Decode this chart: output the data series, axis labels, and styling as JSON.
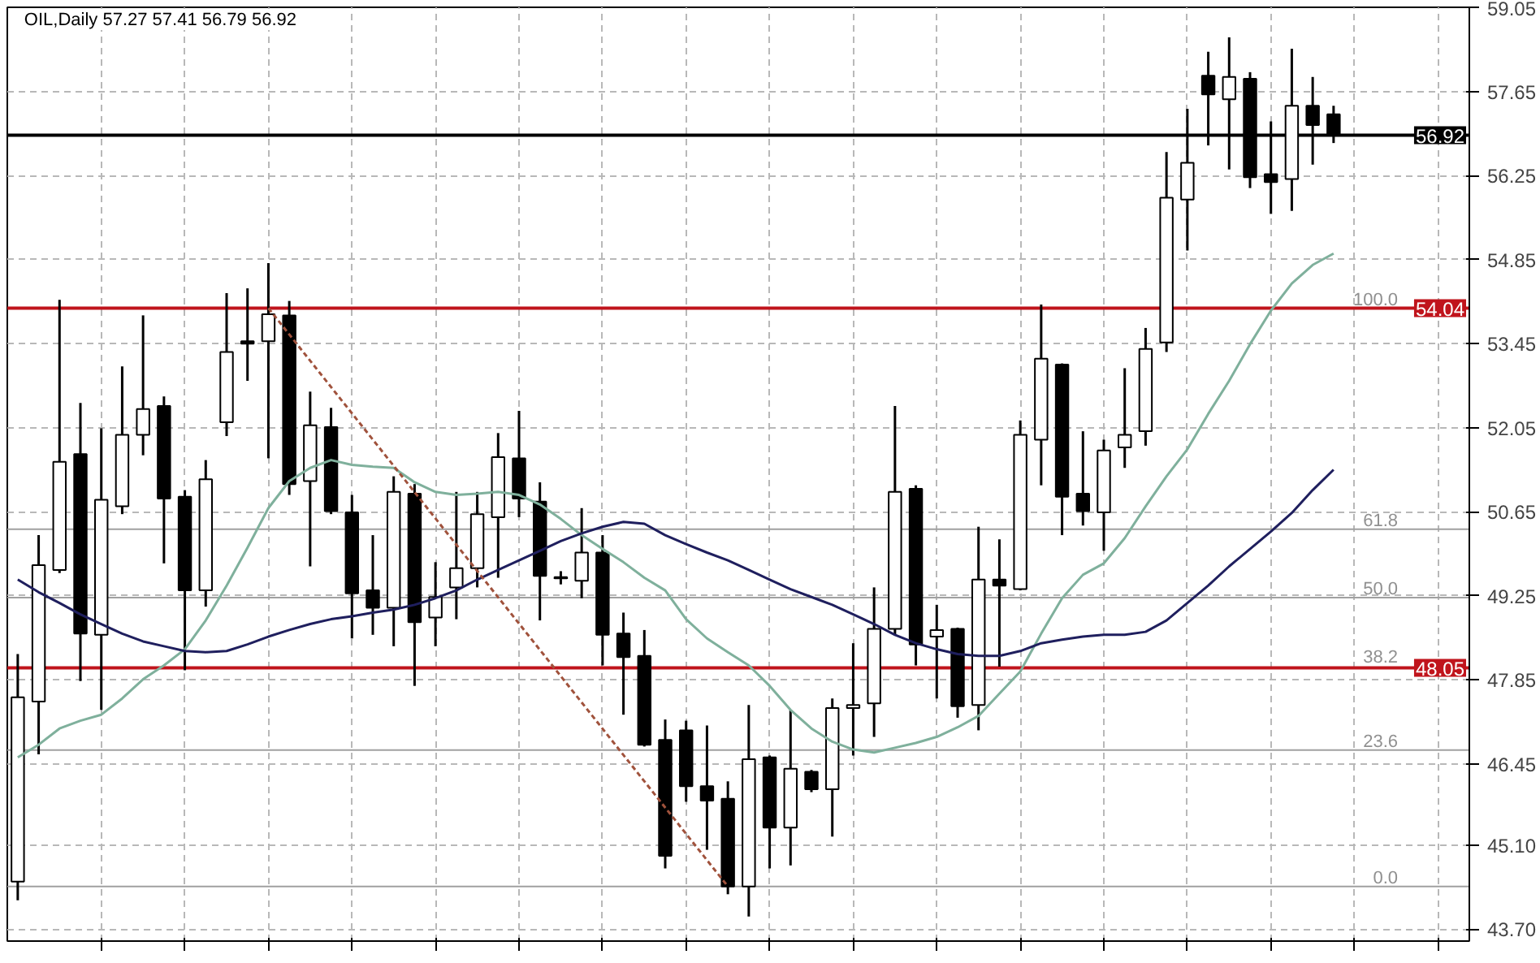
{
  "chart_data": {
    "type": "candlestick",
    "title": "OIL,Daily  57.27 57.41 56.79 56.92",
    "categories": [
      null,
      null,
      null,
      null,
      null,
      null,
      null,
      null,
      null,
      null,
      null,
      null,
      null,
      null,
      null,
      null,
      null,
      null,
      null,
      null,
      null,
      null,
      null,
      null,
      null,
      null,
      null,
      null,
      null,
      null,
      null,
      null,
      null,
      null,
      null,
      null,
      null,
      null,
      null,
      null,
      null,
      null,
      null,
      null,
      null,
      null,
      null,
      null,
      null,
      null,
      null,
      null,
      null,
      null,
      null,
      null,
      null,
      null,
      null,
      null,
      null,
      null,
      null,
      null
    ],
    "ohlc": [
      [
        44.49,
        48.28,
        44.18,
        47.56
      ],
      [
        47.49,
        50.26,
        46.61,
        49.76
      ],
      [
        49.68,
        54.18,
        49.63,
        51.48
      ],
      [
        51.61,
        52.46,
        47.83,
        48.62
      ],
      [
        48.6,
        52.04,
        47.35,
        50.85
      ],
      [
        50.74,
        53.07,
        50.61,
        51.93
      ],
      [
        51.93,
        53.92,
        51.59,
        52.36
      ],
      [
        52.41,
        52.57,
        49.79,
        50.87
      ],
      [
        50.9,
        51.01,
        48.01,
        49.34
      ],
      [
        49.34,
        51.51,
        49.07,
        51.19
      ],
      [
        52.14,
        54.29,
        51.91,
        53.31
      ],
      [
        53.49,
        54.37,
        52.83,
        53.45
      ],
      [
        53.49,
        54.79,
        51.54,
        53.94
      ],
      [
        53.92,
        54.16,
        50.93,
        51.11
      ],
      [
        51.16,
        52.65,
        49.74,
        52.09
      ],
      [
        52.06,
        52.38,
        50.61,
        50.66
      ],
      [
        50.64,
        50.93,
        48.54,
        49.29
      ],
      [
        49.34,
        50.26,
        48.6,
        49.05
      ],
      [
        49.05,
        51.24,
        48.41,
        50.98
      ],
      [
        50.95,
        51.11,
        47.75,
        48.81
      ],
      [
        48.89,
        49.81,
        48.41,
        49.23
      ],
      [
        49.39,
        50.98,
        48.86,
        49.71
      ],
      [
        49.71,
        50.98,
        49.39,
        50.61
      ],
      [
        50.56,
        51.96,
        49.55,
        51.56
      ],
      [
        51.54,
        52.33,
        50.56,
        50.87
      ],
      [
        50.82,
        51.14,
        48.84,
        49.58
      ],
      [
        49.56,
        49.66,
        49.44,
        49.54
      ],
      [
        49.5,
        50.71,
        49.21,
        49.97
      ],
      [
        49.97,
        50.26,
        48.09,
        48.6
      ],
      [
        48.62,
        48.97,
        47.27,
        48.23
      ],
      [
        48.25,
        48.68,
        46.74,
        46.77
      ],
      [
        46.85,
        47.19,
        44.71,
        44.92
      ],
      [
        47.01,
        47.17,
        45.82,
        46.08
      ],
      [
        46.08,
        47.09,
        45.02,
        45.84
      ],
      [
        45.87,
        46.16,
        44.28,
        44.41
      ],
      [
        44.41,
        47.43,
        43.91,
        46.53
      ],
      [
        46.56,
        46.59,
        44.71,
        45.39
      ],
      [
        45.39,
        47.35,
        44.76,
        46.37
      ],
      [
        46.32,
        46.35,
        45.98,
        46.03
      ],
      [
        46.03,
        47.54,
        45.24,
        47.38
      ],
      [
        47.38,
        48.46,
        46.59,
        47.43
      ],
      [
        47.46,
        49.39,
        46.9,
        48.7
      ],
      [
        48.7,
        52.41,
        48.6,
        50.98
      ],
      [
        51.03,
        51.09,
        48.09,
        48.44
      ],
      [
        48.57,
        49.1,
        47.54,
        48.68
      ],
      [
        48.7,
        48.72,
        47.22,
        47.41
      ],
      [
        47.43,
        50.4,
        47.01,
        49.52
      ],
      [
        49.52,
        50.19,
        48.07,
        49.42
      ],
      [
        49.36,
        52.17,
        49.34,
        51.93
      ],
      [
        51.85,
        54.1,
        51.09,
        53.2
      ],
      [
        53.1,
        53.12,
        50.26,
        50.9
      ],
      [
        50.95,
        51.99,
        50.42,
        50.66
      ],
      [
        50.64,
        51.85,
        50.0,
        51.67
      ],
      [
        51.72,
        53.04,
        51.38,
        51.93
      ],
      [
        51.99,
        53.71,
        51.75,
        53.36
      ],
      [
        53.47,
        56.64,
        53.31,
        55.88
      ],
      [
        55.85,
        57.36,
        55.0,
        56.46
      ],
      [
        57.91,
        58.31,
        56.75,
        57.6
      ],
      [
        57.52,
        58.55,
        56.35,
        57.89
      ],
      [
        57.86,
        57.97,
        56.04,
        56.22
      ],
      [
        56.27,
        57.15,
        55.61,
        56.14
      ],
      [
        56.19,
        58.36,
        55.66,
        57.41
      ],
      [
        57.41,
        57.89,
        56.43,
        57.09
      ],
      [
        57.27,
        57.41,
        56.79,
        56.92
      ]
    ],
    "series": [
      {
        "type": "line",
        "color": "#7fb09c",
        "values": [
          46.56,
          46.77,
          47.04,
          47.17,
          47.27,
          47.54,
          47.86,
          48.09,
          48.36,
          48.84,
          49.42,
          50.05,
          50.71,
          51.16,
          51.38,
          51.51,
          51.43,
          51.4,
          51.38,
          51.14,
          50.98,
          50.93,
          50.95,
          50.98,
          50.93,
          50.77,
          50.53,
          50.26,
          50.03,
          49.81,
          49.55,
          49.34,
          48.86,
          48.54,
          48.31,
          48.09,
          47.75,
          47.35,
          47.04,
          46.82,
          46.69,
          46.64,
          46.72,
          46.8,
          46.9,
          47.06,
          47.25,
          47.62,
          47.99,
          48.62,
          49.21,
          49.6,
          49.79,
          50.21,
          50.74,
          51.24,
          51.69,
          52.28,
          52.83,
          53.44,
          54.0,
          54.45,
          54.76,
          54.95
        ]
      },
      {
        "type": "line",
        "color": "#1f1f5e",
        "values": [
          49.52,
          49.31,
          49.13,
          48.94,
          48.78,
          48.62,
          48.49,
          48.41,
          48.33,
          48.31,
          48.33,
          48.44,
          48.57,
          48.68,
          48.78,
          48.86,
          48.91,
          48.97,
          49.02,
          49.1,
          49.21,
          49.34,
          49.52,
          49.68,
          49.84,
          50.0,
          50.16,
          50.29,
          50.4,
          50.48,
          50.45,
          50.26,
          50.11,
          49.97,
          49.84,
          49.68,
          49.52,
          49.36,
          49.23,
          49.1,
          48.94,
          48.78,
          48.6,
          48.46,
          48.36,
          48.28,
          48.25,
          48.25,
          48.33,
          48.46,
          48.52,
          48.57,
          48.6,
          48.6,
          48.65,
          48.84,
          49.13,
          49.42,
          49.74,
          50.03,
          50.32,
          50.63,
          51.01,
          51.35
        ]
      },
      {
        "type": "line",
        "color": "#a0523c",
        "line_style": "dashed",
        "values": [
          null,
          null,
          null,
          null,
          null,
          null,
          null,
          null,
          null,
          null,
          null,
          null,
          54.04,
          null,
          null,
          null,
          null,
          null,
          null,
          null,
          null,
          null,
          null,
          null,
          null,
          null,
          null,
          null,
          null,
          null,
          null,
          null,
          null,
          null,
          44.41,
          null,
          null,
          null,
          null,
          null,
          null,
          null,
          null,
          null,
          null,
          null,
          null,
          null,
          null,
          null,
          null,
          null,
          null,
          null,
          null,
          null,
          null,
          null,
          null,
          null,
          null,
          null,
          null,
          null
        ]
      }
    ],
    "annotations": [
      {
        "text": "100.0",
        "y": 54.04
      },
      {
        "text": "61.8",
        "y": 50.36
      },
      {
        "text": "50.0",
        "y": 49.22
      },
      {
        "text": "38.2",
        "y": 48.09
      },
      {
        "text": "23.6",
        "y": 46.68
      },
      {
        "text": "0.0",
        "y": 44.41
      }
    ],
    "ref_lines": [
      {
        "axis": "y",
        "value": 50.36
      },
      {
        "axis": "y",
        "value": 49.22
      },
      {
        "axis": "y",
        "value": 46.68
      },
      {
        "axis": "y",
        "value": 44.41
      },
      {
        "axis": "y",
        "value": 56.92,
        "label": "56.92",
        "color": "#000000"
      },
      {
        "axis": "y",
        "value": 54.04,
        "label": "54.04",
        "color": "#c0141c"
      },
      {
        "axis": "y",
        "value": 48.05,
        "label": "48.05",
        "color": "#c0141c"
      }
    ],
    "ylim": [
      43.5,
      59.05
    ],
    "yticks": [
      {
        "value": 43.7,
        "label": "43.70"
      },
      {
        "value": 45.1,
        "label": "45.10"
      },
      46.45,
      47.85,
      49.25,
      50.65,
      52.05,
      53.45,
      54.85,
      56.25,
      57.65,
      59.05
    ],
    "grid": true,
    "marker": "none",
    "tick_labels": "y"
  }
}
